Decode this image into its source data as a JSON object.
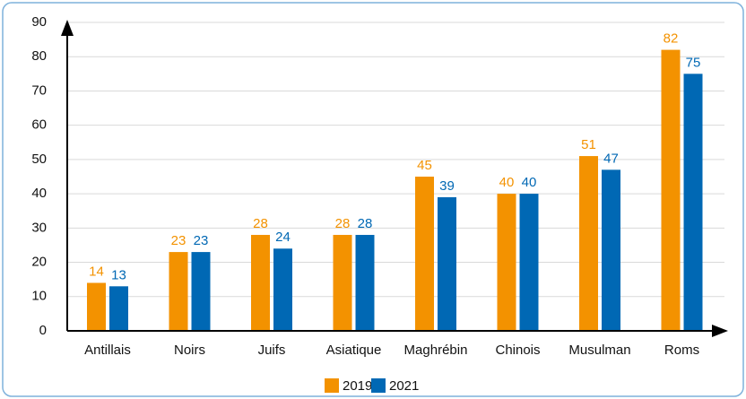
{
  "chart_data": {
    "type": "bar",
    "categories": [
      "Antillais",
      "Noirs",
      "Juifs",
      "Asiatique",
      "Maghrébin",
      "Chinois",
      "Musulman",
      "Roms"
    ],
    "series": [
      {
        "name": "2019",
        "color": "#f39200",
        "values": [
          14,
          23,
          28,
          28,
          45,
          40,
          51,
          82
        ]
      },
      {
        "name": "2021",
        "color": "#0068b4",
        "values": [
          13,
          23,
          24,
          28,
          39,
          40,
          47,
          75
        ]
      }
    ],
    "ylim": [
      0,
      90
    ],
    "yticks": [
      0,
      10,
      20,
      30,
      40,
      50,
      60,
      70,
      80,
      90
    ],
    "grid": true
  }
}
